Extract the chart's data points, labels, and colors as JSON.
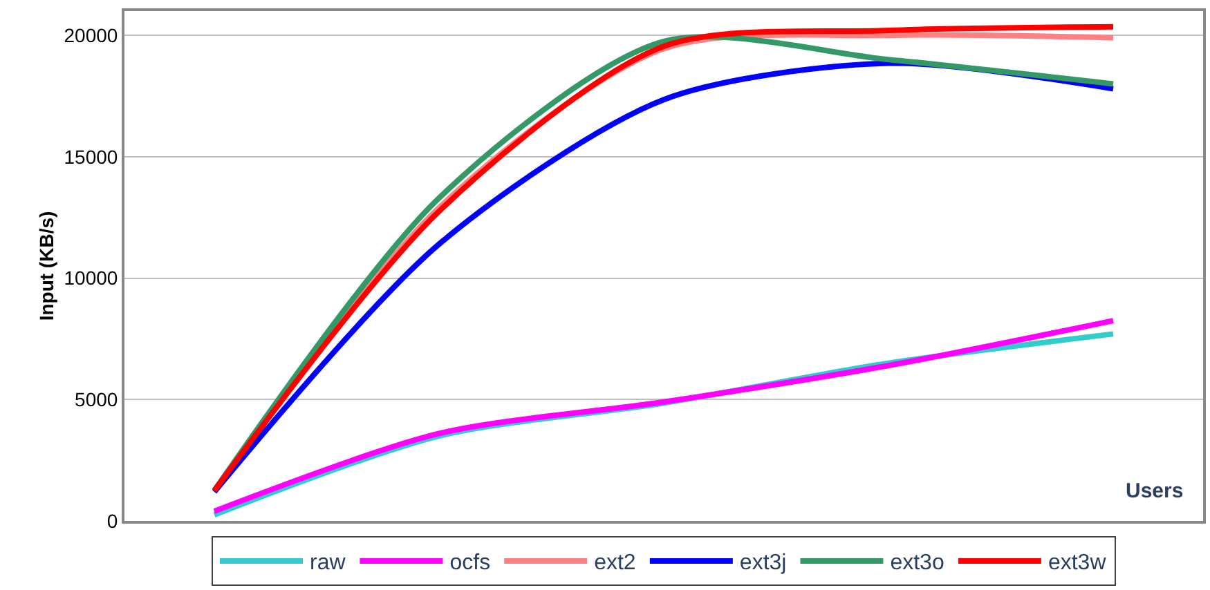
{
  "chart_data": {
    "type": "line",
    "xlabel": "Users",
    "ylabel": "Input (KB/s)",
    "categories": [
      null,
      null,
      null,
      null,
      null
    ],
    "ylim": [
      0,
      21000
    ],
    "yticks": [
      0,
      5000,
      10000,
      15000,
      20000
    ],
    "grid": "y",
    "legend": "bottom",
    "marker": "none",
    "line_style": "solid",
    "series": [
      {
        "name": "raw",
        "color": "#33cccc",
        "values": [
          250,
          3500,
          4850,
          6500,
          7700
        ]
      },
      {
        "name": "ocfs",
        "color": "#ff00ff",
        "values": [
          400,
          3600,
          4900,
          6400,
          8250
        ]
      },
      {
        "name": "ext2",
        "color": "#ff8080",
        "values": [
          1250,
          12900,
          19450,
          20000,
          19900
        ]
      },
      {
        "name": "ext3j",
        "color": "#0000ff",
        "values": [
          1200,
          11400,
          17350,
          18850,
          17800
        ]
      },
      {
        "name": "ext3o",
        "color": "#339966",
        "values": [
          1250,
          13300,
          19750,
          19000,
          18000
        ]
      },
      {
        "name": "ext3w",
        "color": "#ff0000",
        "values": [
          1250,
          12750,
          19550,
          20200,
          20350
        ]
      }
    ]
  }
}
